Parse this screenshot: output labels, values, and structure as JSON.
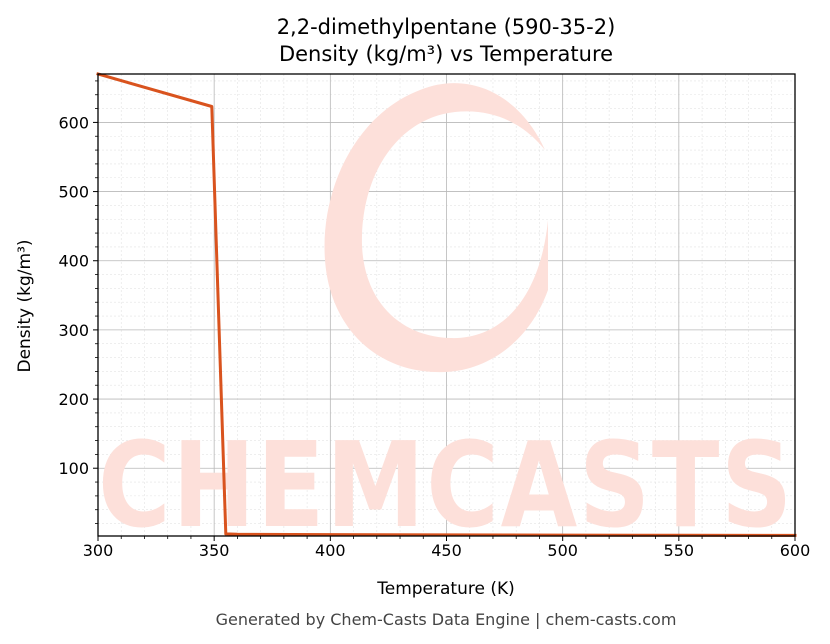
{
  "chart_data": {
    "type": "line",
    "title": "2,2-dimethylpentane (590-35-2)",
    "subtitle": "Density (kg/m³) vs Temperature",
    "xlabel": "Temperature (K)",
    "ylabel": "Density (kg/m³)",
    "xlim": [
      300,
      600
    ],
    "ylim": [
      2,
      670
    ],
    "x_ticks": [
      300,
      350,
      400,
      450,
      500,
      550,
      600
    ],
    "y_ticks": [
      100,
      200,
      300,
      400,
      500,
      600
    ],
    "grid": true,
    "series": [
      {
        "color": "#d9531e",
        "x": [
          300,
          349,
          355,
          360,
          400,
          450,
          500,
          550,
          600
        ],
        "y": [
          670,
          623,
          5,
          4.5,
          4,
          3.6,
          3.3,
          3.0,
          2.8
        ]
      }
    ]
  },
  "watermark": {
    "text": "CHEMCASTS"
  },
  "footer": "Generated by Chem-Casts Data Engine | chem-casts.com"
}
